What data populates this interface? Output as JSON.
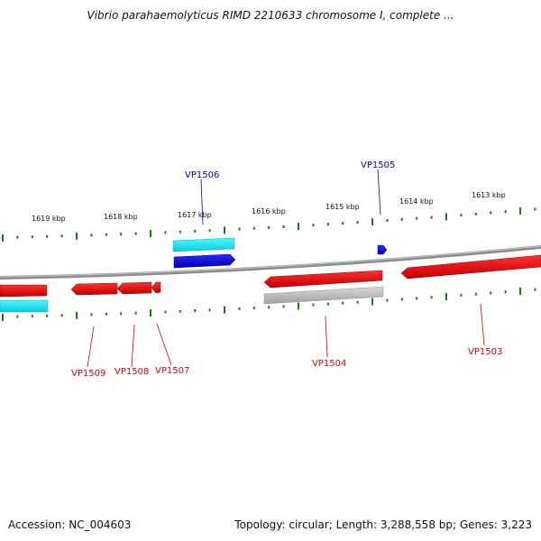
{
  "title": "Vibrio parahaemolyticus RIMD 2210633 chromosome I, complete ...",
  "footer": {
    "accession": "Accession: NC_004603",
    "summary": "Topology: circular; Length: 3,288,558 bp; Genes: 3,223"
  },
  "colors": {
    "forward_cds": "#1010e0",
    "forward_rna": "#20e0f0",
    "reverse_cds": "#ee0000",
    "pseudo": "#b8b8b8",
    "ticks": "#1a7a1a",
    "backbone": "#888888"
  },
  "scale": {
    "unit": "kbp",
    "ticks": [
      "1619 kbp",
      "1618 kbp",
      "1617 kbp",
      "1616 kbp",
      "1615 kbp",
      "1614 kbp",
      "1613 kbp"
    ]
  },
  "genes": [
    {
      "label": "VP1506",
      "strand": "forward",
      "kind": "rna"
    },
    {
      "label": "VP1505",
      "strand": "forward",
      "kind": "cds"
    },
    {
      "label": "VP1509",
      "strand": "reverse",
      "kind": "cds"
    },
    {
      "label": "VP1508",
      "strand": "reverse",
      "kind": "cds"
    },
    {
      "label": "VP1507",
      "strand": "reverse",
      "kind": "cds"
    },
    {
      "label": "VP1504",
      "strand": "reverse",
      "kind": "cds"
    },
    {
      "label": "VP1503",
      "strand": "reverse",
      "kind": "cds"
    }
  ]
}
